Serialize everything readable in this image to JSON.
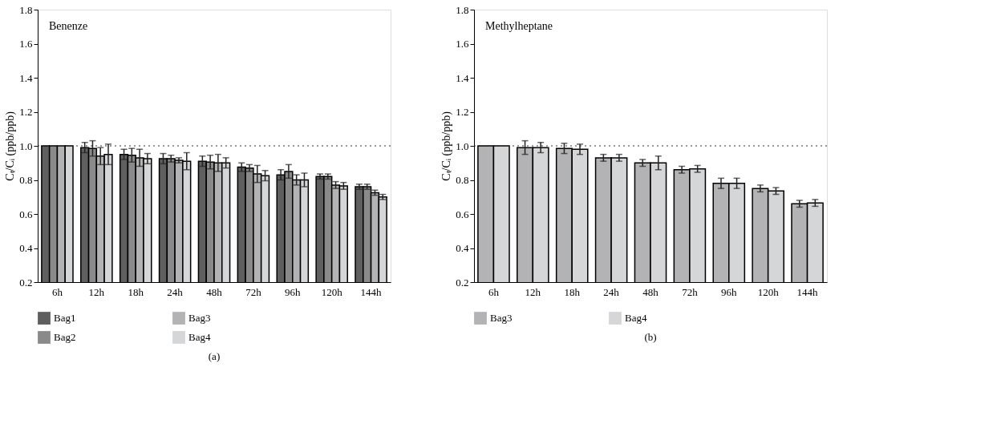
{
  "chart_data": [
    {
      "type": "bar",
      "title": "Benenze",
      "ylabel": "Cₜ/Cᵢ (ppb/ppb)",
      "annotations": [
        "(a)"
      ],
      "categories": [
        "6h",
        "12h",
        "18h",
        "24h",
        "48h",
        "72h",
        "96h",
        "120h",
        "144h"
      ],
      "series": [
        {
          "name": "Bag1",
          "color": "#5f5f5f",
          "values": [
            1.0,
            0.99,
            0.95,
            0.925,
            0.91,
            0.875,
            0.83,
            0.82,
            0.76
          ],
          "errors": [
            null,
            0.03,
            0.03,
            0.03,
            0.03,
            0.025,
            0.03,
            0.015,
            0.015
          ]
        },
        {
          "name": "Bag2",
          "color": "#8a8a8a",
          "values": [
            1.0,
            0.985,
            0.945,
            0.925,
            0.905,
            0.87,
            0.85,
            0.82,
            0.76
          ],
          "errors": [
            null,
            0.045,
            0.04,
            0.02,
            0.04,
            0.02,
            0.04,
            0.015,
            0.015
          ]
        },
        {
          "name": "Bag3",
          "color": "#b3b3b6",
          "values": [
            1.0,
            0.94,
            0.93,
            0.915,
            0.9,
            0.835,
            0.8,
            0.77,
            0.725
          ],
          "errors": [
            null,
            0.05,
            0.05,
            0.015,
            0.05,
            0.05,
            0.03,
            0.02,
            0.015
          ]
        },
        {
          "name": "Bag4",
          "color": "#d5d6d8",
          "values": [
            1.0,
            0.95,
            0.925,
            0.91,
            0.9,
            0.825,
            0.8,
            0.765,
            0.7
          ],
          "errors": [
            null,
            0.06,
            0.03,
            0.05,
            0.03,
            0.03,
            0.04,
            0.02,
            0.015
          ]
        }
      ],
      "ylim": [
        0.2,
        1.8
      ],
      "yticks": [
        0.2,
        0.4,
        0.6,
        0.8,
        {
          "value": 1,
          "label": "1.0"
        },
        1.2,
        1.4,
        1.6,
        1.8
      ],
      "grid": false,
      "legend": "bottom",
      "ref_lines": [
        {
          "axis": "y",
          "value": 1.0,
          "line_style": "dotted"
        }
      ]
    },
    {
      "type": "bar",
      "title": "Methylheptane",
      "ylabel": "Cₜ/Cᵢ (ppb/ppb)",
      "annotations": [
        "(b)"
      ],
      "categories": [
        "6h",
        "12h",
        "18h",
        "24h",
        "48h",
        "72h",
        "96h",
        "120h",
        "144h"
      ],
      "series": [
        {
          "name": "Bag3",
          "color": "#b3b3b6",
          "values": [
            1.0,
            0.99,
            0.985,
            0.93,
            0.9,
            0.86,
            0.78,
            0.75,
            0.66
          ],
          "errors": [
            null,
            0.04,
            0.03,
            0.02,
            0.02,
            0.02,
            0.03,
            0.02,
            0.02
          ]
        },
        {
          "name": "Bag4",
          "color": "#d5d6d8",
          "values": [
            1.0,
            0.99,
            0.98,
            0.93,
            0.9,
            0.865,
            0.78,
            0.735,
            0.665
          ],
          "errors": [
            null,
            0.03,
            0.03,
            0.02,
            0.04,
            0.02,
            0.03,
            0.02,
            0.02
          ]
        }
      ],
      "ylim": [
        0.2,
        1.8
      ],
      "yticks": [
        0.2,
        0.4,
        0.6,
        0.8,
        {
          "value": 1,
          "label": "1.0"
        },
        1.2,
        1.4,
        1.6,
        1.8
      ],
      "grid": false,
      "legend": "bottom",
      "ref_lines": [
        {
          "axis": "y",
          "value": 1.0,
          "line_style": "dotted"
        }
      ]
    }
  ]
}
